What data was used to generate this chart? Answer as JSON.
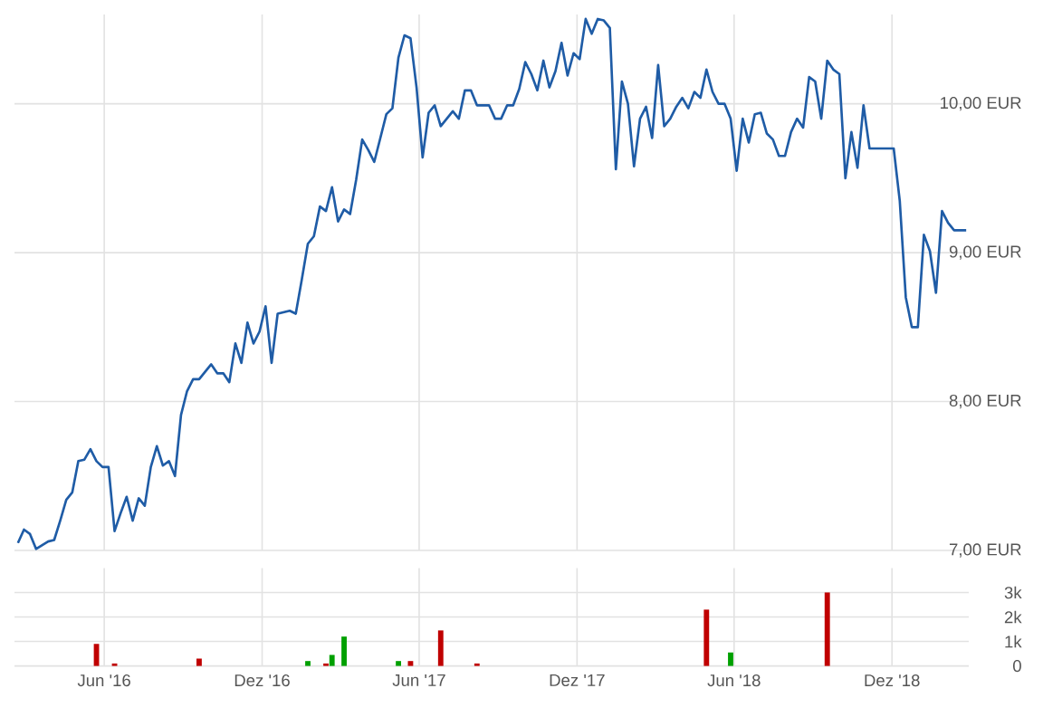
{
  "chart_data": [
    {
      "type": "line",
      "color": "#1f5ca6",
      "grid": true,
      "tick_labels": "y",
      "xlim": [
        "2016-02-18",
        "2019-02-28"
      ],
      "ylim": [
        7,
        10.6
      ],
      "xticks": [
        {
          "value": "2016-06-01",
          "label": null
        },
        {
          "value": "2016-12-01",
          "label": null
        },
        {
          "value": "2017-06-01",
          "label": null
        },
        {
          "value": "2017-12-01",
          "label": null
        },
        {
          "value": "2018-06-01",
          "label": null
        },
        {
          "value": "2018-12-01",
          "label": null
        }
      ],
      "yticks": [
        {
          "value": 7,
          "label": "7,00 EUR"
        },
        {
          "value": 8,
          "label": "8,00 EUR"
        },
        {
          "value": 9,
          "label": "9,00 EUR"
        },
        {
          "value": 10,
          "label": "10,00 EUR"
        }
      ],
      "x": [
        "2016-02-22",
        "2016-02-29",
        "2016-03-07",
        "2016-03-14",
        "2016-03-28",
        "2016-04-04",
        "2016-04-11",
        "2016-04-18",
        "2016-04-25",
        "2016-05-02",
        "2016-05-09",
        "2016-05-16",
        "2016-05-23",
        "2016-05-30",
        "2016-06-06",
        "2016-06-13",
        "2016-06-20",
        "2016-06-27",
        "2016-07-04",
        "2016-07-11",
        "2016-07-18",
        "2016-07-25",
        "2016-08-01",
        "2016-08-08",
        "2016-08-15",
        "2016-08-22",
        "2016-08-29",
        "2016-09-05",
        "2016-09-12",
        "2016-09-19",
        "2016-10-03",
        "2016-10-10",
        "2016-10-17",
        "2016-10-24",
        "2016-10-31",
        "2016-11-07",
        "2016-11-14",
        "2016-11-21",
        "2016-11-28",
        "2016-12-05",
        "2016-12-12",
        "2016-12-19",
        "2017-01-02",
        "2017-01-09",
        "2017-01-16",
        "2017-01-23",
        "2017-01-30",
        "2017-02-06",
        "2017-02-13",
        "2017-02-20",
        "2017-02-27",
        "2017-03-06",
        "2017-03-13",
        "2017-03-20",
        "2017-03-27",
        "2017-04-03",
        "2017-04-10",
        "2017-04-17",
        "2017-04-24",
        "2017-05-01",
        "2017-05-08",
        "2017-05-15",
        "2017-05-22",
        "2017-05-29",
        "2017-06-05",
        "2017-06-12",
        "2017-06-19",
        "2017-06-26",
        "2017-07-10",
        "2017-07-17",
        "2017-07-24",
        "2017-07-31",
        "2017-08-07",
        "2017-08-21",
        "2017-08-28",
        "2017-09-04",
        "2017-09-11",
        "2017-09-18",
        "2017-09-25",
        "2017-10-02",
        "2017-10-09",
        "2017-10-16",
        "2017-10-23",
        "2017-10-30",
        "2017-11-06",
        "2017-11-13",
        "2017-11-20",
        "2017-11-27",
        "2017-12-04",
        "2017-12-11",
        "2017-12-18",
        "2017-12-25",
        "2018-01-01",
        "2018-01-08",
        "2018-01-15",
        "2018-01-22",
        "2018-01-29",
        "2018-02-05",
        "2018-02-12",
        "2018-02-19",
        "2018-02-26",
        "2018-03-05",
        "2018-03-12",
        "2018-03-19",
        "2018-03-26",
        "2018-04-02",
        "2018-04-09",
        "2018-04-16",
        "2018-04-23",
        "2018-04-30",
        "2018-05-07",
        "2018-05-14",
        "2018-05-21",
        "2018-05-28",
        "2018-06-04",
        "2018-06-11",
        "2018-06-18",
        "2018-06-25",
        "2018-07-02",
        "2018-07-09",
        "2018-07-16",
        "2018-07-23",
        "2018-07-30",
        "2018-08-06",
        "2018-08-13",
        "2018-08-20",
        "2018-08-27",
        "2018-09-03",
        "2018-09-10",
        "2018-09-17",
        "2018-09-24",
        "2018-10-01",
        "2018-10-08",
        "2018-10-15",
        "2018-10-22",
        "2018-10-29",
        "2018-11-05",
        "2018-12-03",
        "2018-12-10",
        "2018-12-17",
        "2018-12-24",
        "2018-12-31",
        "2019-01-07",
        "2019-01-14",
        "2019-01-21",
        "2019-01-28",
        "2019-02-04",
        "2019-02-11",
        "2019-02-25"
      ],
      "values": [
        7.05,
        7.14,
        7.11,
        7.01,
        7.06,
        7.07,
        7.2,
        7.34,
        7.39,
        7.6,
        7.61,
        7.68,
        7.6,
        7.56,
        7.56,
        7.13,
        7.25,
        7.36,
        7.2,
        7.35,
        7.3,
        7.56,
        7.7,
        7.57,
        7.6,
        7.5,
        7.91,
        8.07,
        8.15,
        8.15,
        8.25,
        8.19,
        8.19,
        8.13,
        8.39,
        8.26,
        8.53,
        8.39,
        8.47,
        8.64,
        8.26,
        8.59,
        8.61,
        8.59,
        8.82,
        9.06,
        9.11,
        9.31,
        9.28,
        9.44,
        9.21,
        9.29,
        9.26,
        9.49,
        9.76,
        9.69,
        9.61,
        9.77,
        9.93,
        9.97,
        10.31,
        10.46,
        10.44,
        10.11,
        9.64,
        9.94,
        9.99,
        9.85,
        9.95,
        9.9,
        10.09,
        10.09,
        9.99,
        9.99,
        9.9,
        9.9,
        9.99,
        9.99,
        10.1,
        10.28,
        10.2,
        10.09,
        10.29,
        10.11,
        10.22,
        10.41,
        10.19,
        10.34,
        10.3,
        10.57,
        10.47,
        10.57,
        10.56,
        10.51,
        9.56,
        10.15,
        10.0,
        9.58,
        9.9,
        9.98,
        9.77,
        10.26,
        9.85,
        9.9,
        9.98,
        10.04,
        9.97,
        10.08,
        10.04,
        10.23,
        10.08,
        10.0,
        10.0,
        9.9,
        9.55,
        9.9,
        9.74,
        9.93,
        9.94,
        9.8,
        9.76,
        9.65,
        9.65,
        9.81,
        9.9,
        9.84,
        10.18,
        10.15,
        9.9,
        10.29,
        10.23,
        10.2,
        9.5,
        9.81,
        9.57,
        9.99,
        9.7,
        9.7,
        9.35,
        8.7,
        8.5,
        8.5,
        9.12,
        9.01,
        8.73,
        9.28,
        9.2,
        9.15,
        9.15
      ]
    },
    {
      "type": "bar",
      "grid": true,
      "xlim": [
        "2016-02-18",
        "2019-02-28"
      ],
      "ylim": [
        0,
        4000
      ],
      "xticks": [
        {
          "value": "2016-06-01",
          "label": "Jun '16"
        },
        {
          "value": "2016-12-01",
          "label": "Dez '16"
        },
        {
          "value": "2017-06-01",
          "label": "Jun '17"
        },
        {
          "value": "2017-12-01",
          "label": "Dez '17"
        },
        {
          "value": "2018-06-01",
          "label": "Jun '18"
        },
        {
          "value": "2018-12-01",
          "label": "Dez '18"
        }
      ],
      "yticks": [
        0,
        {
          "value": 1000,
          "label": "1k"
        },
        {
          "value": 2000,
          "label": "2k"
        },
        {
          "value": 3000,
          "label": "3k"
        }
      ],
      "x": [
        "2016-05-23",
        "2016-06-13",
        "2016-09-19",
        "2017-01-23",
        "2017-02-13",
        "2017-02-20",
        "2017-03-06",
        "2017-05-08",
        "2017-05-22",
        "2017-06-26",
        "2017-08-07",
        "2018-04-30",
        "2018-05-28",
        "2018-09-17"
      ],
      "values": [
        900,
        100,
        300,
        200,
        100,
        450,
        1200,
        200,
        200,
        1450,
        100,
        2300,
        550,
        3000
      ],
      "colors": [
        "#c00000",
        "#c00000",
        "#c00000",
        "#00a000",
        "#c00000",
        "#00a000",
        "#00a000",
        "#00a000",
        "#c00000",
        "#c00000",
        "#c00000",
        "#c00000",
        "#00a000",
        "#c00000"
      ]
    }
  ]
}
